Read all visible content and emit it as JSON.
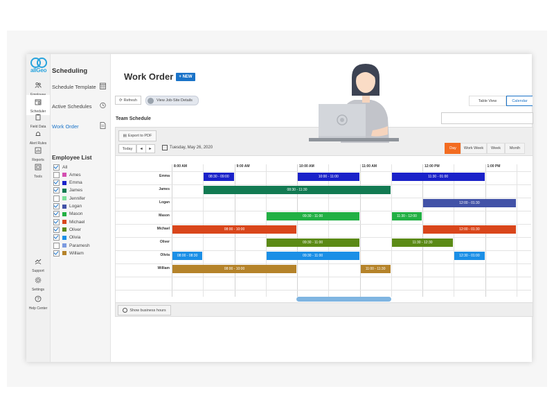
{
  "logo": {
    "text": "allGeo"
  },
  "iconbar": [
    {
      "label": "Employee",
      "icon": "users-icon"
    },
    {
      "label": "Scheduler",
      "icon": "calendar-icon"
    },
    {
      "label": "Field Data",
      "icon": "clipboard-icon"
    },
    {
      "label": "Alert Rules",
      "icon": "bell-icon"
    },
    {
      "label": "Reports",
      "icon": "chart-icon"
    },
    {
      "label": "Tools",
      "icon": "tools-icon"
    },
    {
      "label": "Support",
      "icon": "support-icon"
    },
    {
      "label": "Settings",
      "icon": "gear-icon"
    },
    {
      "label": "Help Center",
      "icon": "help-icon"
    }
  ],
  "subpanel": {
    "heading": "Scheduling",
    "items": [
      {
        "label": "Schedule Template",
        "icon": "calendar-grid-icon"
      },
      {
        "label": "Active Schedules",
        "icon": "clock-icon"
      },
      {
        "label": "Work Order",
        "icon": "document-icon"
      }
    ],
    "employee_list_heading": "Employee List",
    "employees": [
      {
        "name": "All",
        "checked": true,
        "color": ""
      },
      {
        "name": "Ames",
        "checked": false,
        "color": "#d44fb0"
      },
      {
        "name": "Emma",
        "checked": true,
        "color": "#1a22c9"
      },
      {
        "name": "James",
        "checked": true,
        "color": "#127a52"
      },
      {
        "name": "Jennifer",
        "checked": false,
        "color": "#7de09a"
      },
      {
        "name": "Logan",
        "checked": true,
        "color": "#4252a7"
      },
      {
        "name": "Mason",
        "checked": true,
        "color": "#22b044"
      },
      {
        "name": "Michael",
        "checked": true,
        "color": "#d9461b"
      },
      {
        "name": "Oliver",
        "checked": true,
        "color": "#5b8a16"
      },
      {
        "name": "Olivia",
        "checked": true,
        "color": "#1b8fe6"
      },
      {
        "name": "Paramesh",
        "checked": false,
        "color": "#7c9be0"
      },
      {
        "name": "William",
        "checked": true,
        "color": "#b5832a"
      }
    ]
  },
  "main": {
    "title": "Work Order",
    "new_label": "+ NEW",
    "refresh_label": "Refresh",
    "toggle_label": "View Job-Site Details",
    "view_tabs": [
      "Table View",
      "Calendar"
    ],
    "team_schedule": "Team Schedule",
    "export_label": "Export to PDF",
    "today_label": "Today",
    "prev_label": "◄",
    "next_label": "►",
    "date_label": "Tuesday, May 26, 2020",
    "views": [
      "Day",
      "Work Week",
      "Week",
      "Month"
    ],
    "show_business_hours": "Show business hours"
  },
  "schedule": {
    "time_headers": [
      "8:00 AM",
      "9:00 AM",
      "10:00 AM",
      "11:00 AM",
      "12:00 PM",
      "1:00 PM"
    ],
    "rows": [
      {
        "name": "Emma",
        "color": "#1a22c9",
        "shifts": [
          {
            "label": "08:30 - 09:00",
            "start": 8.5,
            "end": 9.0
          },
          {
            "label": "10:00 - 11:00",
            "start": 10.0,
            "end": 11.0
          },
          {
            "label": "11:30 - 01:00",
            "start": 11.5,
            "end": 13.0
          }
        ]
      },
      {
        "name": "James",
        "color": "#127a52",
        "shifts": [
          {
            "label": "08:30 - 11:30",
            "start": 8.5,
            "end": 11.5
          }
        ]
      },
      {
        "name": "Logan",
        "color": "#4252a7",
        "shifts": [
          {
            "label": "12:00 - 01:30",
            "start": 12.0,
            "end": 13.5
          }
        ]
      },
      {
        "name": "Mason",
        "color": "#22b044",
        "shifts": [
          {
            "label": "09:30 - 11:00",
            "start": 9.5,
            "end": 11.0
          },
          {
            "label": "11:30 - 12:00",
            "start": 11.5,
            "end": 12.0
          }
        ]
      },
      {
        "name": "Michael",
        "color": "#d9461b",
        "shifts": [
          {
            "label": "08:00 - 10:00",
            "start": 8.0,
            "end": 10.0
          },
          {
            "label": "12:00 - 01:30",
            "start": 12.0,
            "end": 13.5
          }
        ]
      },
      {
        "name": "Oliver",
        "color": "#5b8a16",
        "shifts": [
          {
            "label": "09:30 - 11:00",
            "start": 9.5,
            "end": 11.0
          },
          {
            "label": "11:30 - 12:30",
            "start": 11.5,
            "end": 12.5
          }
        ]
      },
      {
        "name": "Olivia",
        "color": "#1b8fe6",
        "shifts": [
          {
            "label": "08:00 - 08:30",
            "start": 8.0,
            "end": 8.5
          },
          {
            "label": "09:30 - 11:00",
            "start": 9.5,
            "end": 11.0
          },
          {
            "label": "12:30 - 01:00",
            "start": 12.5,
            "end": 13.0
          }
        ]
      },
      {
        "name": "William",
        "color": "#b5832a",
        "shifts": [
          {
            "label": "08:00 - 10:00",
            "start": 8.0,
            "end": 10.0
          },
          {
            "label": "11:00 - 11:30",
            "start": 11.0,
            "end": 11.5
          }
        ]
      }
    ]
  }
}
